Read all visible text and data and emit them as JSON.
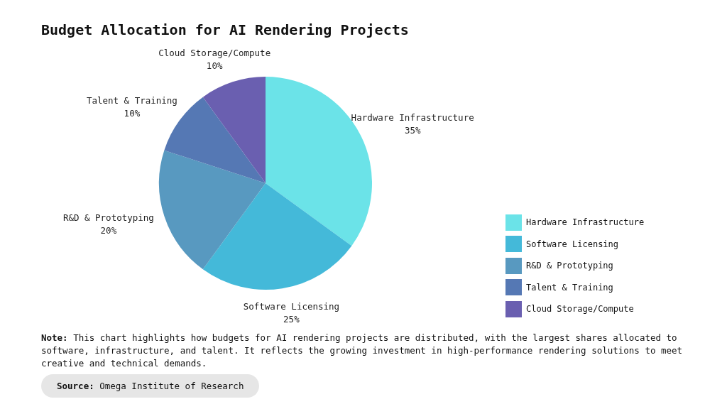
{
  "chart_data": {
    "type": "pie",
    "title": "Budget Allocation for AI Rendering Projects",
    "categories": [
      "Hardware Infrastructure",
      "Software Licensing",
      "R&D & Prototyping",
      "Talent & Training",
      "Cloud Storage/Compute"
    ],
    "values": [
      35,
      25,
      20,
      10,
      10
    ],
    "colors": [
      "#6be3e8",
      "#44b9d9",
      "#5899c0",
      "#5578b4",
      "#6a5fb0"
    ],
    "legend": "right",
    "value_labels": [
      "35%",
      "25%",
      "20%",
      "10%",
      "10%"
    ],
    "annotations": [
      "Note: This chart highlights how budgets for AI rendering projects are distributed, with the largest shares allocated to software, infrastructure, and talent. It reflects the growing investment in high-performance rendering solutions to meet creative and technical demands.",
      "Source: Omega Institute of Research"
    ]
  }
}
